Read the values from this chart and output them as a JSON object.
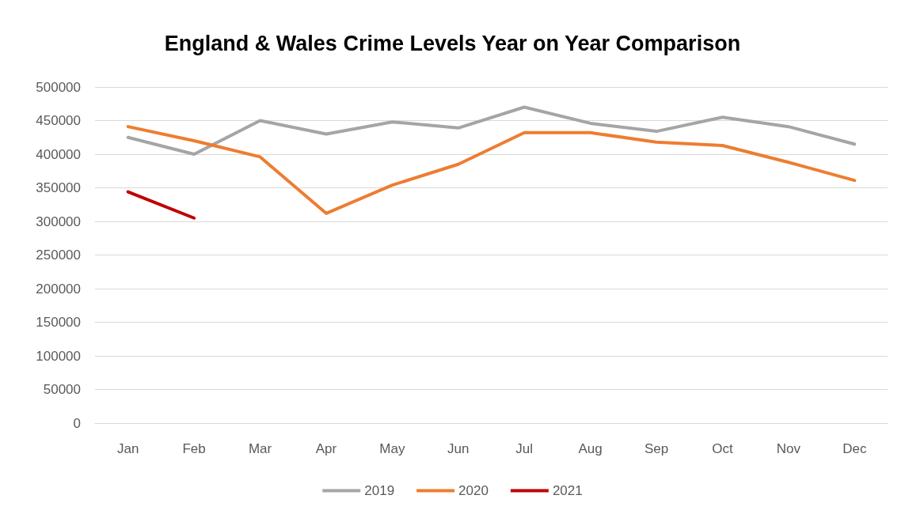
{
  "chart_data": {
    "type": "line",
    "title": "England & Wales Crime Levels Year on Year Comparison",
    "categories": [
      "Jan",
      "Feb",
      "Mar",
      "Apr",
      "May",
      "Jun",
      "Jul",
      "Aug",
      "Sep",
      "Oct",
      "Nov",
      "Dec"
    ],
    "series": [
      {
        "name": "2019",
        "color": "#a5a5a5",
        "values": [
          425000,
          400000,
          450000,
          430000,
          448000,
          439000,
          470000,
          446000,
          434000,
          455000,
          441000,
          415000
        ]
      },
      {
        "name": "2020",
        "color": "#ed7d31",
        "values": [
          441000,
          420000,
          396000,
          312000,
          354000,
          385000,
          432000,
          432000,
          418000,
          413000,
          388000,
          361000
        ]
      },
      {
        "name": "2021",
        "color": "#c00000",
        "values": [
          344000,
          305000,
          null,
          null,
          null,
          null,
          null,
          null,
          null,
          null,
          null,
          null
        ]
      }
    ],
    "ylim": [
      0,
      500000
    ],
    "yticks": [
      0,
      50000,
      100000,
      150000,
      200000,
      250000,
      300000,
      350000,
      400000,
      450000,
      500000
    ],
    "grid": "y",
    "legend": "bottom",
    "marker": "none",
    "line_style": "solid"
  }
}
